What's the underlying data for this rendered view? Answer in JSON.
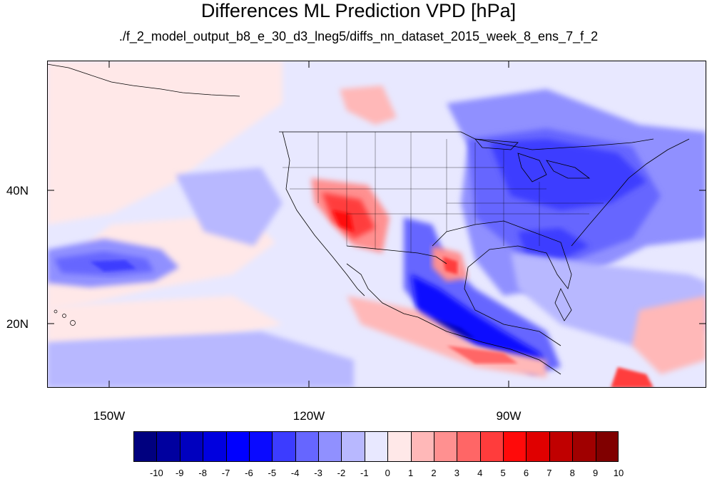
{
  "header": {
    "title": "Differences ML Prediction VPD [hPa]",
    "subtitle": "./f_2_model_output_b8_e_30_d3_lneg5/diffs_nn_dataset_2015_week_8_ens_7_f_2"
  },
  "axes": {
    "lat_labels": [
      "40N",
      "20N"
    ],
    "lon_labels": [
      "150W",
      "120W",
      "90W"
    ]
  },
  "colorbar": {
    "labels": [
      "-10",
      "-9",
      "-8",
      "-7",
      "-6",
      "-5",
      "-4",
      "-3",
      "-2",
      "-1",
      "0",
      "1",
      "2",
      "3",
      "4",
      "5",
      "6",
      "7",
      "8",
      "9",
      "10"
    ],
    "colors": [
      "#00007f",
      "#00009f",
      "#0000bf",
      "#0000df",
      "#0000ff",
      "#0a0aff",
      "#3c3cff",
      "#6666ff",
      "#9090ff",
      "#b8b8ff",
      "#e8e8ff",
      "#ffe8e8",
      "#ffb8b8",
      "#ff9090",
      "#ff6666",
      "#ff3c3c",
      "#ff0a0a",
      "#e00000",
      "#c00000",
      "#a00000",
      "#800000"
    ]
  }
}
